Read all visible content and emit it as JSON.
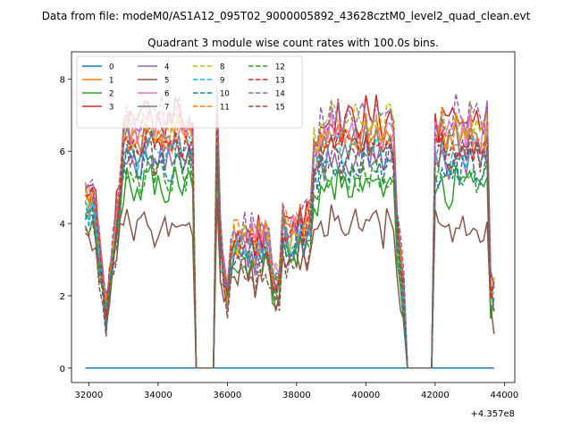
{
  "suptitle": "Data from file: modeM0/AS1A12_095T02_9000005892_43628cztM0_level2_quad_clean.evt",
  "chart_data": {
    "type": "line",
    "title": "Quadrant 3 module wise count rates with 100.0s bins.",
    "xlabel": "",
    "ylabel": "",
    "x_offset_label": "+4.357e8",
    "xlim": [
      31500,
      44300
    ],
    "ylim": [
      -0.4,
      8.75
    ],
    "xticks": [
      32000,
      34000,
      36000,
      38000,
      40000,
      42000,
      44000
    ],
    "xtick_labels": [
      "32000",
      "34000",
      "36000",
      "38000",
      "40000",
      "42000",
      "44000"
    ],
    "yticks": [
      0,
      2,
      4,
      6,
      8
    ],
    "ytick_labels": [
      "0",
      "2",
      "4",
      "6",
      "8"
    ],
    "grid": false,
    "legend_placement": "top-left",
    "legend_columns": 4,
    "x_range_data": [
      31900,
      43700
    ],
    "gaps": [
      {
        "from": 35100,
        "to": 35600
      },
      {
        "from": 41200,
        "to": 41900
      }
    ],
    "gap_spikes": [
      35700,
      36000,
      37000
    ],
    "series": [
      {
        "name": "0",
        "color": "#1f77b4",
        "dash": "solid",
        "level": 0.0,
        "base": 0.0
      },
      {
        "name": "1",
        "color": "#ff7f0e",
        "dash": "solid",
        "level": 6.4,
        "base": 4.6
      },
      {
        "name": "2",
        "color": "#2ca02c",
        "dash": "solid",
        "level": 5.0,
        "base": 3.9
      },
      {
        "name": "3",
        "color": "#d62728",
        "dash": "solid",
        "level": 6.9,
        "base": 5.0
      },
      {
        "name": "4",
        "color": "#9467bd",
        "dash": "solid",
        "level": 5.8,
        "base": 4.3
      },
      {
        "name": "5",
        "color": "#8c564b",
        "dash": "solid",
        "level": 3.9,
        "base": 3.5
      },
      {
        "name": "6",
        "color": "#e377c2",
        "dash": "solid",
        "level": 6.6,
        "base": 4.8
      },
      {
        "name": "7",
        "color": "#7f7f7f",
        "dash": "solid",
        "level": 6.2,
        "base": 4.5
      },
      {
        "name": "8",
        "color": "#bcbd22",
        "dash": "dashed",
        "level": 6.8,
        "base": 4.7
      },
      {
        "name": "9",
        "color": "#17becf",
        "dash": "dashed",
        "level": 6.0,
        "base": 4.4
      },
      {
        "name": "10",
        "color": "#1f77b4",
        "dash": "dashed",
        "level": 5.6,
        "base": 4.2
      },
      {
        "name": "11",
        "color": "#ff7f0e",
        "dash": "dashed",
        "level": 6.5,
        "base": 4.9
      },
      {
        "name": "12",
        "color": "#2ca02c",
        "dash": "dashed",
        "level": 5.3,
        "base": 4.1
      },
      {
        "name": "13",
        "color": "#d62728",
        "dash": "dashed",
        "level": 6.1,
        "base": 4.6
      },
      {
        "name": "14",
        "color": "#9467bd",
        "dash": "dashed",
        "level": 7.0,
        "base": 5.1
      },
      {
        "name": "15",
        "color": "#8c564b",
        "dash": "dashed",
        "level": 5.9,
        "base": 3.6
      }
    ]
  }
}
